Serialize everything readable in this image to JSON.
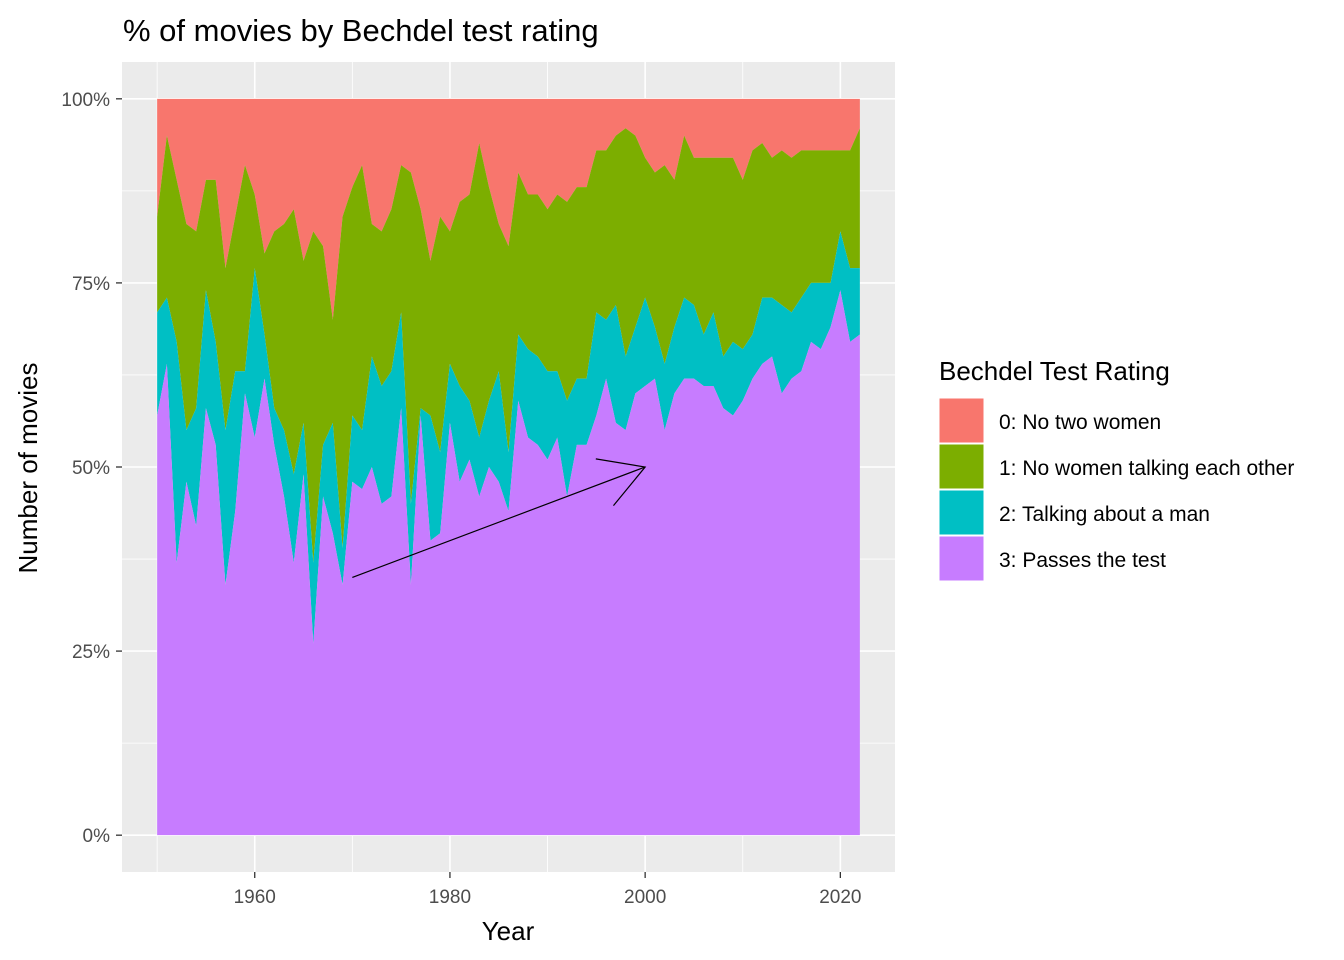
{
  "chart_data": {
    "type": "area",
    "stacked": "fill",
    "title": "% of movies by Bechdel test rating",
    "xlabel": "Year",
    "ylabel": "Number of movies",
    "xlim": [
      1946.4,
      2025.6
    ],
    "ylim": [
      -0.05,
      1.05
    ],
    "x_ticks": [
      1960,
      1980,
      2000,
      2020
    ],
    "x_tick_labels": [
      "1960",
      "1980",
      "2000",
      "2020"
    ],
    "y_ticks": [
      0,
      0.25,
      0.5,
      0.75,
      1.0
    ],
    "y_tick_labels": [
      "0%",
      "25%",
      "50%",
      "75%",
      "100%"
    ],
    "grid": true,
    "legend": {
      "title": "Bechdel Test Rating",
      "position": "right"
    },
    "x": [
      1950,
      1951,
      1952,
      1953,
      1954,
      1955,
      1956,
      1957,
      1958,
      1959,
      1960,
      1961,
      1962,
      1963,
      1964,
      1965,
      1966,
      1967,
      1968,
      1969,
      1970,
      1971,
      1972,
      1973,
      1974,
      1975,
      1976,
      1977,
      1978,
      1979,
      1980,
      1981,
      1982,
      1983,
      1984,
      1985,
      1986,
      1987,
      1988,
      1989,
      1990,
      1991,
      1992,
      1993,
      1994,
      1995,
      1996,
      1997,
      1998,
      1999,
      2000,
      2001,
      2002,
      2003,
      2004,
      2005,
      2006,
      2007,
      2008,
      2009,
      2010,
      2011,
      2012,
      2013,
      2014,
      2015,
      2016,
      2017,
      2018,
      2019,
      2020,
      2021,
      2022
    ],
    "series": [
      {
        "name": "3: Passes the test",
        "color": "#C77CFF",
        "cumulative_top": [
          0.57,
          0.64,
          0.37,
          0.48,
          0.42,
          0.58,
          0.53,
          0.34,
          0.44,
          0.6,
          0.54,
          0.62,
          0.53,
          0.46,
          0.37,
          0.49,
          0.26,
          0.46,
          0.41,
          0.34,
          0.48,
          0.47,
          0.5,
          0.45,
          0.46,
          0.58,
          0.34,
          0.57,
          0.4,
          0.41,
          0.56,
          0.48,
          0.51,
          0.46,
          0.5,
          0.48,
          0.44,
          0.59,
          0.54,
          0.53,
          0.51,
          0.54,
          0.46,
          0.53,
          0.53,
          0.57,
          0.62,
          0.56,
          0.55,
          0.6,
          0.61,
          0.62,
          0.55,
          0.6,
          0.62,
          0.62,
          0.61,
          0.61,
          0.58,
          0.57,
          0.59,
          0.62,
          0.64,
          0.65,
          0.6,
          0.62,
          0.63,
          0.67,
          0.66,
          0.69,
          0.74,
          0.67,
          0.68
        ]
      },
      {
        "name": "2: Talking about a man",
        "color": "#00BFC4",
        "cumulative_top": [
          0.71,
          0.73,
          0.67,
          0.55,
          0.58,
          0.74,
          0.67,
          0.55,
          0.63,
          0.63,
          0.77,
          0.68,
          0.58,
          0.55,
          0.49,
          0.56,
          0.37,
          0.53,
          0.56,
          0.39,
          0.57,
          0.55,
          0.65,
          0.61,
          0.63,
          0.71,
          0.45,
          0.58,
          0.57,
          0.52,
          0.64,
          0.61,
          0.59,
          0.54,
          0.59,
          0.63,
          0.52,
          0.68,
          0.66,
          0.65,
          0.63,
          0.63,
          0.59,
          0.62,
          0.62,
          0.71,
          0.7,
          0.72,
          0.65,
          0.69,
          0.73,
          0.69,
          0.64,
          0.69,
          0.73,
          0.72,
          0.68,
          0.71,
          0.65,
          0.67,
          0.66,
          0.68,
          0.73,
          0.73,
          0.72,
          0.71,
          0.73,
          0.75,
          0.75,
          0.75,
          0.82,
          0.77,
          0.77
        ]
      },
      {
        "name": "1: No women talking each other",
        "color": "#7CAE00",
        "cumulative_top": [
          0.84,
          0.95,
          0.89,
          0.83,
          0.82,
          0.89,
          0.89,
          0.77,
          0.84,
          0.91,
          0.87,
          0.79,
          0.82,
          0.83,
          0.85,
          0.78,
          0.82,
          0.8,
          0.7,
          0.84,
          0.88,
          0.91,
          0.83,
          0.82,
          0.85,
          0.91,
          0.9,
          0.85,
          0.78,
          0.84,
          0.82,
          0.86,
          0.87,
          0.94,
          0.88,
          0.83,
          0.8,
          0.9,
          0.87,
          0.87,
          0.85,
          0.87,
          0.86,
          0.88,
          0.88,
          0.93,
          0.93,
          0.95,
          0.96,
          0.95,
          0.92,
          0.9,
          0.91,
          0.89,
          0.95,
          0.92,
          0.92,
          0.92,
          0.92,
          0.92,
          0.89,
          0.93,
          0.94,
          0.92,
          0.93,
          0.92,
          0.93,
          0.93,
          0.93,
          0.93,
          0.93,
          0.93,
          0.96
        ]
      },
      {
        "name": "0: No two women",
        "color": "#F8766D",
        "cumulative_top": [
          1,
          1,
          1,
          1,
          1,
          1,
          1,
          1,
          1,
          1,
          1,
          1,
          1,
          1,
          1,
          1,
          1,
          1,
          1,
          1,
          1,
          1,
          1,
          1,
          1,
          1,
          1,
          1,
          1,
          1,
          1,
          1,
          1,
          1,
          1,
          1,
          1,
          1,
          1,
          1,
          1,
          1,
          1,
          1,
          1,
          1,
          1,
          1,
          1,
          1,
          1,
          1,
          1,
          1,
          1,
          1,
          1,
          1,
          1,
          1,
          1,
          1,
          1,
          1,
          1,
          1,
          1,
          1,
          1,
          1,
          1,
          1,
          1
        ]
      }
    ],
    "annotations": [
      {
        "type": "arrow",
        "from": [
          1970,
          0.35
        ],
        "to": [
          2000,
          0.5
        ],
        "color": "#000000"
      }
    ]
  }
}
